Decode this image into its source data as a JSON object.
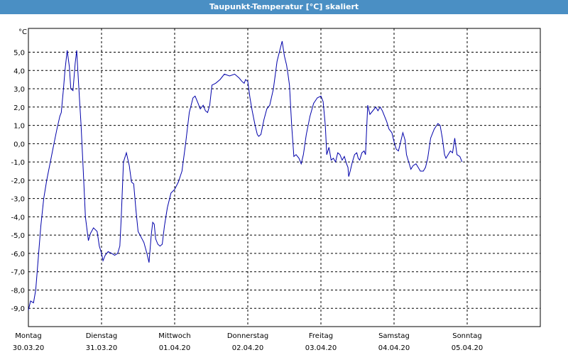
{
  "window": {
    "title": "Taupunkt-Temperatur [°C] skaliert"
  },
  "chart_data": {
    "type": "line",
    "title": "Taupunkt-Temperatur [°C] skaliert",
    "ylabel": "°C",
    "xlabel": "",
    "ylim": [
      -10,
      6.3
    ],
    "xlim": [
      0,
      7.0
    ],
    "yticks": [
      5,
      4,
      3,
      2,
      1,
      0,
      -1,
      -2,
      -3,
      -4,
      -5,
      -6,
      -7,
      -8,
      -9
    ],
    "ytick_labels": [
      "5,0",
      "4,0",
      "3,0",
      "2,0",
      "1,0",
      "0,0",
      "-1,0",
      "-2,0",
      "-3,0",
      "-4,0",
      "-5,0",
      "-6,0",
      "-7,0",
      "-8,0",
      "-9,0"
    ],
    "days": [
      {
        "weekday": "Montag",
        "date": "30.03.20"
      },
      {
        "weekday": "Dienstag",
        "date": "31.03.20"
      },
      {
        "weekday": "Mittwoch",
        "date": "01.04.20"
      },
      {
        "weekday": "Donnerstag",
        "date": "02.04.20"
      },
      {
        "weekday": "Freitag",
        "date": "03.04.20"
      },
      {
        "weekday": "Samstag",
        "date": "04.04.20"
      },
      {
        "weekday": "Sonntag",
        "date": "05.04.20"
      }
    ],
    "grid": true,
    "line_color": "#0000aa",
    "series": [
      {
        "points": [
          [
            0.0,
            -9.1
          ],
          [
            0.03,
            -8.6
          ],
          [
            0.07,
            -8.7
          ],
          [
            0.1,
            -8.0
          ],
          [
            0.13,
            -6.5
          ],
          [
            0.17,
            -4.5
          ],
          [
            0.21,
            -3.0
          ],
          [
            0.25,
            -2.0
          ],
          [
            0.3,
            -1.0
          ],
          [
            0.35,
            0.0
          ],
          [
            0.39,
            0.8
          ],
          [
            0.43,
            1.5
          ],
          [
            0.45,
            1.7
          ],
          [
            0.48,
            3.0
          ],
          [
            0.5,
            4.0
          ],
          [
            0.53,
            5.1
          ],
          [
            0.56,
            4.2
          ],
          [
            0.58,
            3.0
          ],
          [
            0.61,
            2.9
          ],
          [
            0.64,
            4.4
          ],
          [
            0.66,
            5.1
          ],
          [
            0.69,
            3.0
          ],
          [
            0.72,
            1.0
          ],
          [
            0.75,
            -1.5
          ],
          [
            0.78,
            -4.0
          ],
          [
            0.82,
            -5.3
          ],
          [
            0.85,
            -4.9
          ],
          [
            0.89,
            -4.6
          ],
          [
            0.94,
            -4.8
          ],
          [
            0.97,
            -5.6
          ],
          [
            1.0,
            -6.0
          ],
          [
            1.02,
            -6.4
          ],
          [
            1.05,
            -6.1
          ],
          [
            1.09,
            -5.9
          ],
          [
            1.14,
            -6.0
          ],
          [
            1.18,
            -6.1
          ],
          [
            1.22,
            -6.0
          ],
          [
            1.25,
            -5.6
          ],
          [
            1.27,
            -4.0
          ],
          [
            1.3,
            -1.0
          ],
          [
            1.34,
            -0.5
          ],
          [
            1.38,
            -1.2
          ],
          [
            1.41,
            -2.1
          ],
          [
            1.44,
            -2.2
          ],
          [
            1.47,
            -3.6
          ],
          [
            1.5,
            -4.8
          ],
          [
            1.54,
            -5.1
          ],
          [
            1.58,
            -5.4
          ],
          [
            1.62,
            -6.0
          ],
          [
            1.65,
            -6.5
          ],
          [
            1.68,
            -5.0
          ],
          [
            1.7,
            -4.3
          ],
          [
            1.72,
            -4.4
          ],
          [
            1.74,
            -5.2
          ],
          [
            1.77,
            -5.5
          ],
          [
            1.8,
            -5.6
          ],
          [
            1.83,
            -5.5
          ],
          [
            1.86,
            -4.5
          ],
          [
            1.9,
            -3.5
          ],
          [
            1.95,
            -2.7
          ],
          [
            2.0,
            -2.5
          ],
          [
            2.05,
            -2.1
          ],
          [
            2.1,
            -1.5
          ],
          [
            2.15,
            0.0
          ],
          [
            2.2,
            1.7
          ],
          [
            2.25,
            2.5
          ],
          [
            2.28,
            2.6
          ],
          [
            2.32,
            2.2
          ],
          [
            2.35,
            1.9
          ],
          [
            2.39,
            2.1
          ],
          [
            2.42,
            1.8
          ],
          [
            2.45,
            1.7
          ],
          [
            2.48,
            2.1
          ],
          [
            2.51,
            3.2
          ],
          [
            2.56,
            3.3
          ],
          [
            2.62,
            3.5
          ],
          [
            2.68,
            3.8
          ],
          [
            2.75,
            3.7
          ],
          [
            2.82,
            3.8
          ],
          [
            2.88,
            3.6
          ],
          [
            2.92,
            3.4
          ],
          [
            2.95,
            3.3
          ],
          [
            2.97,
            3.5
          ],
          [
            3.0,
            3.4
          ],
          [
            3.03,
            2.5
          ],
          [
            3.06,
            1.8
          ],
          [
            3.1,
            1.0
          ],
          [
            3.13,
            0.5
          ],
          [
            3.15,
            0.4
          ],
          [
            3.18,
            0.5
          ],
          [
            3.22,
            1.3
          ],
          [
            3.26,
            1.9
          ],
          [
            3.3,
            2.1
          ],
          [
            3.35,
            3.0
          ],
          [
            3.4,
            4.5
          ],
          [
            3.45,
            5.3
          ],
          [
            3.47,
            5.6
          ],
          [
            3.5,
            4.8
          ],
          [
            3.53,
            4.3
          ],
          [
            3.55,
            3.8
          ],
          [
            3.57,
            3.2
          ],
          [
            3.6,
            1.0
          ],
          [
            3.63,
            -0.7
          ],
          [
            3.66,
            -0.6
          ],
          [
            3.7,
            -0.8
          ],
          [
            3.73,
            -1.1
          ],
          [
            3.76,
            -0.6
          ],
          [
            3.8,
            0.5
          ],
          [
            3.85,
            1.5
          ],
          [
            3.9,
            2.2
          ],
          [
            3.95,
            2.5
          ],
          [
            4.0,
            2.6
          ],
          [
            4.03,
            2.3
          ],
          [
            4.06,
            1.0
          ],
          [
            4.08,
            -0.6
          ],
          [
            4.11,
            -0.2
          ],
          [
            4.14,
            -0.9
          ],
          [
            4.17,
            -0.8
          ],
          [
            4.2,
            -1.0
          ],
          [
            4.23,
            -0.5
          ],
          [
            4.26,
            -0.6
          ],
          [
            4.29,
            -0.9
          ],
          [
            4.32,
            -0.7
          ],
          [
            4.35,
            -1.1
          ],
          [
            4.37,
            -1.3
          ],
          [
            4.38,
            -1.8
          ],
          [
            4.4,
            -1.5
          ],
          [
            4.43,
            -1.0
          ],
          [
            4.46,
            -0.6
          ],
          [
            4.49,
            -0.5
          ],
          [
            4.51,
            -0.8
          ],
          [
            4.53,
            -0.9
          ],
          [
            4.56,
            -0.5
          ],
          [
            4.59,
            -0.4
          ],
          [
            4.61,
            -0.6
          ],
          [
            4.64,
            2.1
          ],
          [
            4.67,
            1.6
          ],
          [
            4.71,
            1.8
          ],
          [
            4.75,
            2.0
          ],
          [
            4.78,
            1.8
          ],
          [
            4.81,
            2.0
          ],
          [
            4.84,
            1.8
          ],
          [
            4.87,
            1.5
          ],
          [
            4.9,
            1.2
          ],
          [
            4.93,
            0.8
          ],
          [
            4.97,
            0.6
          ],
          [
            5.0,
            0.1
          ],
          [
            5.03,
            -0.3
          ],
          [
            5.06,
            -0.4
          ],
          [
            5.09,
            0.1
          ],
          [
            5.12,
            0.6
          ],
          [
            5.15,
            0.2
          ],
          [
            5.17,
            -0.6
          ],
          [
            5.2,
            -1.0
          ],
          [
            5.23,
            -1.4
          ],
          [
            5.26,
            -1.2
          ],
          [
            5.3,
            -1.1
          ],
          [
            5.33,
            -1.3
          ],
          [
            5.36,
            -1.5
          ],
          [
            5.4,
            -1.5
          ],
          [
            5.43,
            -1.3
          ],
          [
            5.46,
            -0.8
          ],
          [
            5.5,
            0.3
          ],
          [
            5.55,
            0.8
          ],
          [
            5.6,
            1.1
          ],
          [
            5.63,
            1.0
          ],
          [
            5.66,
            0.3
          ],
          [
            5.69,
            -0.6
          ],
          [
            5.71,
            -0.8
          ],
          [
            5.74,
            -0.6
          ],
          [
            5.77,
            -0.4
          ],
          [
            5.8,
            -0.5
          ],
          [
            5.83,
            0.3
          ],
          [
            5.86,
            -0.6
          ],
          [
            5.9,
            -0.7
          ],
          [
            5.93,
            -1.0
          ]
        ]
      }
    ]
  }
}
